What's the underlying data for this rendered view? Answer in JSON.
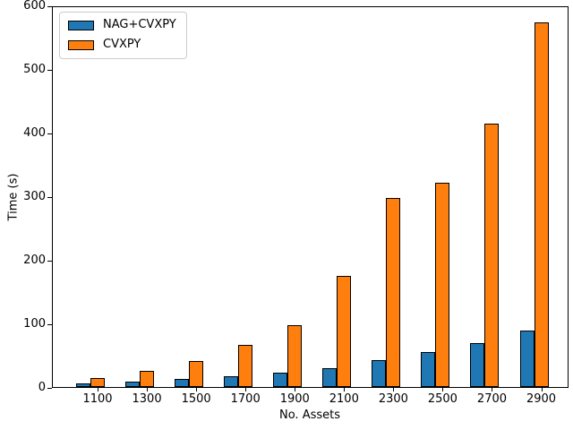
{
  "chart_data": {
    "type": "bar",
    "title": "",
    "xlabel": "No. Assets",
    "ylabel": "Time (s)",
    "categories": [
      "1100",
      "1300",
      "1500",
      "1700",
      "1900",
      "2100",
      "2300",
      "2500",
      "2700",
      "2900"
    ],
    "series": [
      {
        "name": "NAG+CVXPY",
        "color": "#1f77b4",
        "values": [
          6,
          9,
          13,
          17,
          23,
          30,
          42,
          55,
          69,
          89
        ]
      },
      {
        "name": "CVXPY",
        "color": "#ff7f0e",
        "values": [
          14,
          26,
          41,
          66,
          98,
          176,
          298,
          322,
          416,
          576
        ]
      }
    ],
    "ylim": [
      0,
      600
    ],
    "yticks": [
      0,
      100,
      200,
      300,
      400,
      500,
      600
    ],
    "legend_position": "upper-left",
    "grid": false,
    "bar_edge_color": "#000000",
    "axis_color": "#000000",
    "text_color": "#000000",
    "background_color": "#ffffff"
  }
}
